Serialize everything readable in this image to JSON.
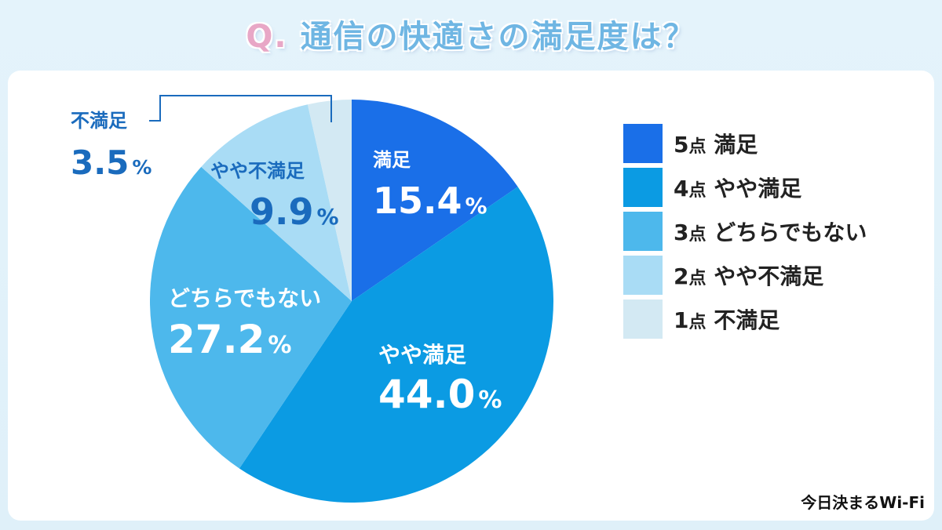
{
  "title": "Q. 通信の快適さの満足度は？",
  "title_q": "Q.",
  "title_rest": "通信の快適さの満足度は？",
  "brand": "今日決まるWi-Fi",
  "chart_data": {
    "type": "pie",
    "title": "Q. 通信の快適さの満足度は？",
    "unit": "%",
    "slices": [
      {
        "label": "満足",
        "value": 15.4,
        "value_text": "15.4",
        "color": "#1a6fe8",
        "text_color": "#ffffff",
        "legend_num": "5",
        "legend_unit": "点",
        "legend_label": "満足"
      },
      {
        "label": "やや満足",
        "value": 44.0,
        "value_text": "44.0",
        "color": "#0b9be3",
        "text_color": "#ffffff",
        "legend_num": "4",
        "legend_unit": "点",
        "legend_label": "やや満足"
      },
      {
        "label": "どちらでもない",
        "value": 27.2,
        "value_text": "27.2",
        "color": "#4db8ec",
        "text_color": "#ffffff",
        "legend_num": "3",
        "legend_unit": "点",
        "legend_label": "どちらでもない"
      },
      {
        "label": "やや不満足",
        "value": 9.9,
        "value_text": "9.9",
        "color": "#a9dcf5",
        "text_color": "#1a6bbd",
        "legend_num": "2",
        "legend_unit": "点",
        "legend_label": "やや不満足"
      },
      {
        "label": "不満足",
        "value": 3.5,
        "value_text": "3.5",
        "color": "#d3e9f3",
        "text_color": "#1a6bbd",
        "legend_num": "1",
        "legend_unit": "点",
        "legend_label": "不満足"
      }
    ]
  }
}
